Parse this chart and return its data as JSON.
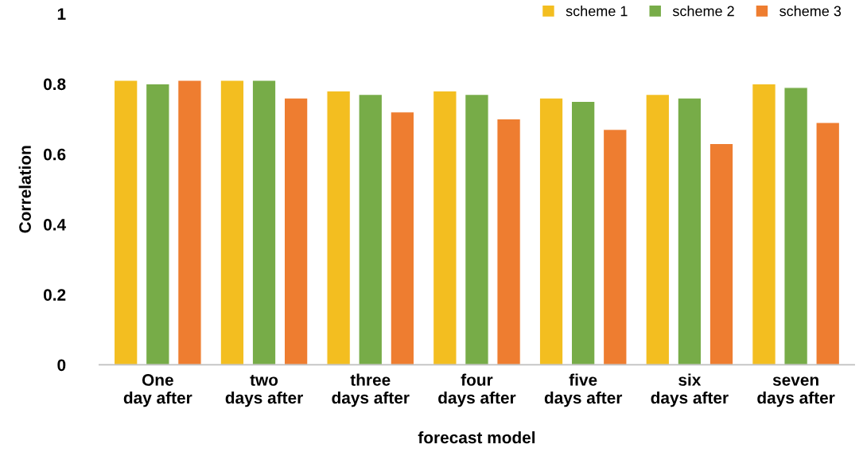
{
  "chart_data": {
    "type": "bar",
    "xlabel": "forecast model",
    "ylabel": "Correlation",
    "categories": [
      "One\nday after",
      "two\ndays after",
      "three\ndays after",
      "four\ndays after",
      "five\ndays after",
      "six\ndays after",
      "seven\ndays after"
    ],
    "series": [
      {
        "name": "scheme 1",
        "color": "#f3be20",
        "values": [
          0.81,
          0.81,
          0.78,
          0.78,
          0.76,
          0.77,
          0.8
        ]
      },
      {
        "name": "scheme 2",
        "color": "#77ac48",
        "values": [
          0.8,
          0.81,
          0.77,
          0.77,
          0.75,
          0.76,
          0.79
        ]
      },
      {
        "name": "scheme 3",
        "color": "#ee7d30",
        "values": [
          0.81,
          0.76,
          0.72,
          0.7,
          0.67,
          0.63,
          0.69
        ]
      }
    ],
    "ylim": [
      0,
      1
    ],
    "yticks": [
      0,
      {
        "value": 0.2,
        "label": "0.2"
      },
      {
        "value": 0.4,
        "label": "0.4"
      },
      {
        "value": 0.6,
        "label": "0.6"
      },
      {
        "value": 0.8,
        "label": "0.8"
      },
      1
    ],
    "grid": false,
    "legend": "top right"
  }
}
